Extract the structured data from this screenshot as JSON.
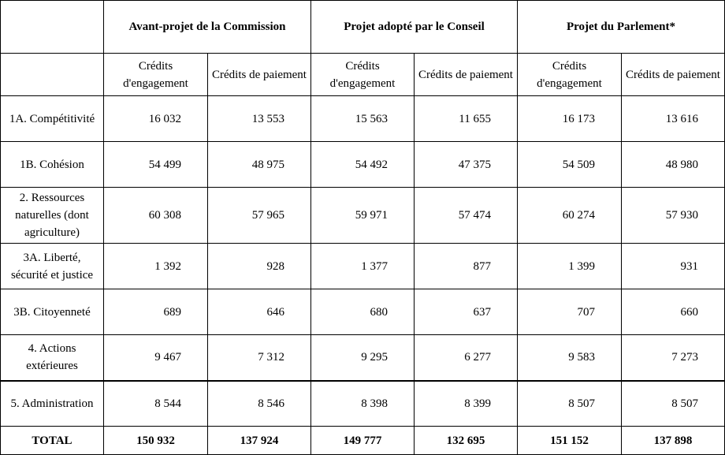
{
  "headers": {
    "groups": [
      "Avant-projet de la Commission",
      "Projet adopté par le Conseil",
      "Projet du Parlement*"
    ],
    "sub": [
      "Crédits d'engagement",
      "Crédits de paiement"
    ]
  },
  "rows": [
    {
      "label": "1A. Compétitivité",
      "values": [
        "16 032",
        "13 553",
        "15 563",
        "11 655",
        "16 173",
        "13 616"
      ]
    },
    {
      "label": "1B. Cohésion",
      "values": [
        "54 499",
        "48 975",
        "54 492",
        "47 375",
        "54 509",
        "48 980"
      ]
    },
    {
      "label": "2. Ressources naturelles (dont agriculture)",
      "values": [
        "60 308",
        "57 965",
        "59 971",
        "57 474",
        "60 274",
        "57 930"
      ]
    },
    {
      "label": "3A. Liberté, sécurité et justice",
      "values": [
        "1 392",
        "928",
        "1 377",
        "877",
        "1 399",
        "931"
      ]
    },
    {
      "label": "3B. Citoyenneté",
      "values": [
        "689",
        "646",
        "680",
        "637",
        "707",
        "660"
      ]
    },
    {
      "label": "4. Actions extérieures",
      "values": [
        "9 467",
        "7 312",
        "9 295",
        "6 277",
        "9 583",
        "7 273"
      ]
    },
    {
      "label": "5. Administration",
      "values": [
        "8 544",
        "8 546",
        "8 398",
        "8 399",
        "8 507",
        "8 507"
      ]
    }
  ],
  "total": {
    "label": "TOTAL",
    "values": [
      "150 932",
      "137 924",
      "149 777",
      "132 695",
      "151 152",
      "137 898"
    ]
  }
}
